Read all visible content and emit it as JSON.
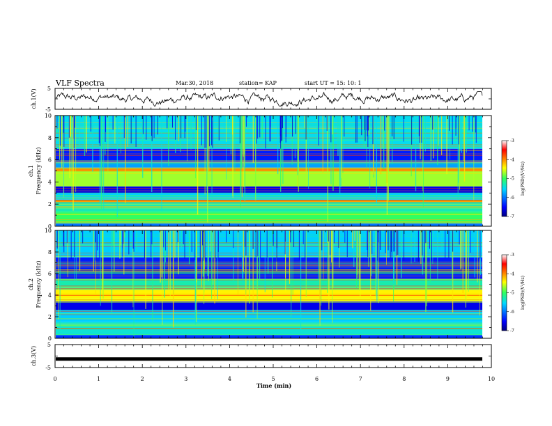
{
  "header": {
    "title": "VLF Spectra",
    "date": "Mar.30, 2018",
    "station": "station= KAP",
    "start": "start  UT =   15: 10: 1"
  },
  "colorbar": {
    "label": "log(PSD)(V²/Hz)",
    "ticks": [
      "-3",
      "-4",
      "-5",
      "-6",
      "-7"
    ],
    "range": [
      -7,
      -3
    ]
  },
  "chart_data": [
    {
      "type": "line",
      "panel": "ch1-waveform",
      "ylabel": "ch.1(V)",
      "ylim": [
        -5,
        5
      ],
      "y_ticks": [
        "5",
        "-5"
      ],
      "x": [
        0,
        10
      ],
      "note_series": "noisy waveform centred near 0 V, amplitude about ±1.5 V"
    },
    {
      "type": "heatmap",
      "panel": "ch1-spectrogram",
      "ylabel": "ch.1\nFrequency (kHz)",
      "ylim": [
        0,
        10
      ],
      "y_ticks": [
        "10",
        "8",
        "6",
        "4",
        "2",
        "0"
      ],
      "xlim": [
        0,
        10
      ],
      "color_scale": "log(PSD)(V²/Hz)",
      "zlim": [
        -7,
        -3
      ],
      "bands_khz": [
        {
          "from": 0.0,
          "to": 0.3,
          "level": -6.0
        },
        {
          "from": 0.3,
          "to": 1.3,
          "level": -5.0
        },
        {
          "from": 1.3,
          "to": 2.2,
          "level": -5.3
        },
        {
          "from": 2.2,
          "to": 2.4,
          "level": -3.8
        },
        {
          "from": 2.4,
          "to": 3.0,
          "level": -5.6
        },
        {
          "from": 3.0,
          "to": 3.6,
          "level": -6.6
        },
        {
          "from": 3.6,
          "to": 5.0,
          "level": -4.7
        },
        {
          "from": 5.0,
          "to": 5.3,
          "level": -4.0
        },
        {
          "from": 5.3,
          "to": 5.8,
          "level": -5.8
        },
        {
          "from": 5.8,
          "to": 7.0,
          "level": -6.4
        },
        {
          "from": 7.0,
          "to": 10.0,
          "level": -5.5
        }
      ]
    },
    {
      "type": "heatmap",
      "panel": "ch2-spectrogram",
      "ylabel": "ch.2\nFrequency (kHz)",
      "ylim": [
        0,
        10
      ],
      "y_ticks": [
        "10",
        "8",
        "6",
        "4",
        "2",
        "0"
      ],
      "xlim": [
        0,
        10
      ],
      "color_scale": "log(PSD)(V²/Hz)",
      "zlim": [
        -7,
        -3
      ],
      "bands_khz": [
        {
          "from": 0.0,
          "to": 0.3,
          "level": -6.3
        },
        {
          "from": 0.3,
          "to": 1.5,
          "level": -5.4
        },
        {
          "from": 1.5,
          "to": 2.6,
          "level": -5.6
        },
        {
          "from": 2.6,
          "to": 3.4,
          "level": -6.6
        },
        {
          "from": 3.4,
          "to": 3.7,
          "level": -4.5
        },
        {
          "from": 3.7,
          "to": 4.5,
          "level": -4.4
        },
        {
          "from": 4.5,
          "to": 5.5,
          "level": -5.3
        },
        {
          "from": 5.5,
          "to": 7.5,
          "level": -6.4
        },
        {
          "from": 7.5,
          "to": 10.0,
          "level": -5.6
        }
      ]
    },
    {
      "type": "line",
      "panel": "ch3-waveform",
      "ylabel": "ch.3(V)",
      "ylim": [
        -5,
        5
      ],
      "y_ticks": [
        "5",
        "-5"
      ],
      "x": [
        0,
        10
      ],
      "note_series": "flat line near -1 V"
    }
  ],
  "x_axis": {
    "label": "Time (min)",
    "ticks": [
      "0",
      "1",
      "2",
      "3",
      "4",
      "5",
      "6",
      "7",
      "8",
      "9",
      "10"
    ],
    "range": [
      0,
      10
    ]
  },
  "colors": {
    "axes": "#000000",
    "background": "#ffffff"
  }
}
